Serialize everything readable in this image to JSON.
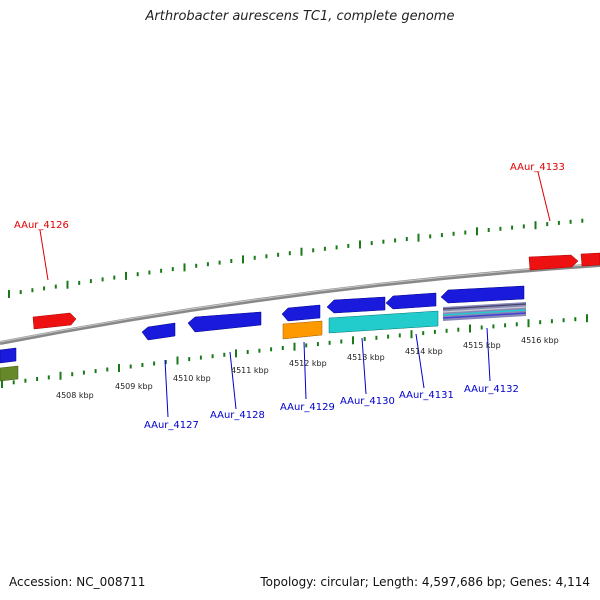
{
  "title": "Arthrobacter aurescens TC1, complete genome",
  "footer": {
    "accession": "Accession: NC_008711",
    "summary": "Topology: circular; Length: 4,597,686 bp; Genes: 4,114"
  },
  "colors": {
    "forward_gene_label": "#dd0000",
    "reverse_gene_label": "#0000cc",
    "tick": "#1a7a1a",
    "backbone": "#888888",
    "red_gene": "#ee1111",
    "blue_gene": "#1a1add",
    "orange_gene": "#ff9900",
    "cyan_gene": "#22cccc",
    "olive_gene": "#66882a"
  },
  "scale_labels": [
    "4508 kbp",
    "4509 kbp",
    "4510 kbp",
    "4511 kbp",
    "4512 kbp",
    "4513 kbp",
    "4514 kbp",
    "4515 kbp",
    "4516 kbp"
  ],
  "gene_labels": {
    "AAur_4126": "AAur_4126",
    "AAur_4133": "AAur_4133",
    "AAur_4127": "AAur_4127",
    "AAur_4128": "AAur_4128",
    "AAur_4129": "AAur_4129",
    "AAur_4130": "AAur_4130",
    "AAur_4131": "AAur_4131",
    "AAur_4132": "AAur_4132"
  }
}
